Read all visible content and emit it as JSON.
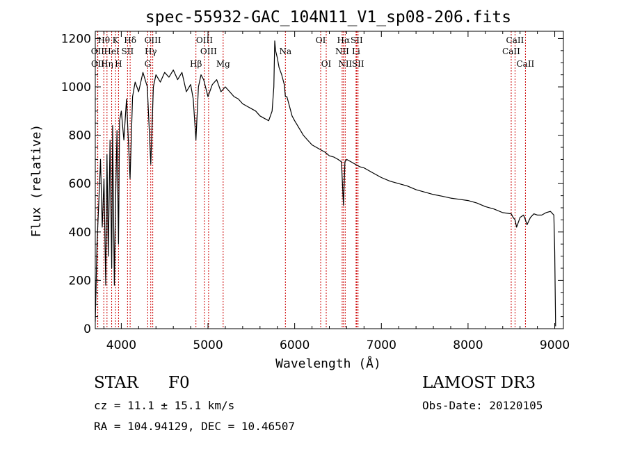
{
  "chart_data": {
    "type": "line",
    "title": "spec-55932-GAC_104N11_V1_sp08-206.fits",
    "xlabel": "Wavelength (Å)",
    "ylabel": "Flux (relative)",
    "xlim": [
      3700,
      9100
    ],
    "ylim": [
      0,
      1230
    ],
    "xticks": [
      4000,
      5000,
      6000,
      7000,
      8000,
      9000
    ],
    "yticks": [
      0,
      200,
      400,
      600,
      800,
      1000,
      1200
    ],
    "series": [
      {
        "name": "flux",
        "x": [
          3700,
          3720,
          3740,
          3760,
          3780,
          3800,
          3820,
          3835,
          3850,
          3870,
          3889,
          3900,
          3920,
          3933,
          3950,
          3968,
          3980,
          4000,
          4030,
          4060,
          4101,
          4130,
          4160,
          4200,
          4250,
          4300,
          4340,
          4370,
          4400,
          4450,
          4500,
          4550,
          4600,
          4650,
          4700,
          4750,
          4800,
          4830,
          4861,
          4890,
          4920,
          4950,
          5000,
          5050,
          5100,
          5150,
          5200,
          5250,
          5300,
          5350,
          5400,
          5450,
          5500,
          5550,
          5600,
          5650,
          5700,
          5740,
          5760,
          5770,
          5780,
          5800,
          5820,
          5850,
          5880,
          5893,
          5910,
          5940,
          5970,
          6000,
          6050,
          6100,
          6150,
          6200,
          6250,
          6300,
          6350,
          6400,
          6450,
          6500,
          6540,
          6563,
          6580,
          6600,
          6650,
          6700,
          6750,
          6800,
          6900,
          7000,
          7100,
          7200,
          7300,
          7400,
          7500,
          7600,
          7700,
          7800,
          7900,
          8000,
          8100,
          8200,
          8300,
          8400,
          8498,
          8520,
          8542,
          8560,
          8600,
          8640,
          8662,
          8680,
          8720,
          8760,
          8800,
          8850,
          8900,
          8950,
          8990,
          9000,
          9010
        ],
        "values": [
          30,
          350,
          520,
          700,
          420,
          620,
          180,
          720,
          300,
          780,
          250,
          840,
          180,
          500,
          820,
          350,
          860,
          900,
          780,
          950,
          620,
          960,
          1020,
          980,
          1060,
          1000,
          680,
          1000,
          1050,
          1020,
          1060,
          1040,
          1070,
          1030,
          1060,
          980,
          1010,
          950,
          780,
          1000,
          1050,
          1030,
          960,
          1010,
          1030,
          980,
          1000,
          980,
          960,
          950,
          930,
          920,
          910,
          900,
          880,
          870,
          860,
          900,
          1000,
          1190,
          1150,
          1120,
          1080,
          1050,
          1010,
          960,
          960,
          920,
          880,
          860,
          830,
          800,
          780,
          760,
          750,
          740,
          730,
          715,
          710,
          700,
          690,
          510,
          690,
          700,
          690,
          680,
          670,
          665,
          645,
          625,
          610,
          600,
          590,
          575,
          565,
          555,
          548,
          540,
          535,
          530,
          520,
          505,
          495,
          480,
          475,
          460,
          450,
          420,
          460,
          470,
          450,
          430,
          460,
          475,
          470,
          470,
          480,
          485,
          470,
          320,
          10
        ]
      }
    ],
    "spectral_lines": [
      {
        "label": "Hθ",
        "x": 3798,
        "row": 0
      },
      {
        "label": "K",
        "x": 3934,
        "row": 0
      },
      {
        "label": "Hδ",
        "x": 4102,
        "row": 0
      },
      {
        "label": "OIII",
        "x": 4363,
        "row": 0
      },
      {
        "label": "OIII",
        "x": 4959,
        "row": 0
      },
      {
        "label": "OI",
        "x": 6300,
        "row": 0
      },
      {
        "label": "Hα",
        "x": 6563,
        "row": 0
      },
      {
        "label": "SII",
        "x": 6716,
        "row": 0
      },
      {
        "label": "CaII",
        "x": 8542,
        "row": 0
      },
      {
        "label": "OII",
        "x": 3727,
        "row": 1
      },
      {
        "label": "HeI",
        "x": 3889,
        "row": 1
      },
      {
        "label": "SII",
        "x": 4072,
        "row": 1
      },
      {
        "label": "Hγ",
        "x": 4340,
        "row": 1
      },
      {
        "label": "OIII",
        "x": 5007,
        "row": 1
      },
      {
        "label": "Na",
        "x": 5893,
        "row": 1
      },
      {
        "label": "NII",
        "x": 6548,
        "row": 1
      },
      {
        "label": "Li",
        "x": 6708,
        "row": 1
      },
      {
        "label": "CaII",
        "x": 8498,
        "row": 1
      },
      {
        "label": "OII",
        "x": 3729,
        "row": 2
      },
      {
        "label": "Hη",
        "x": 3835,
        "row": 2
      },
      {
        "label": "H",
        "x": 3968,
        "row": 2
      },
      {
        "label": "G",
        "x": 4305,
        "row": 2
      },
      {
        "label": "Hβ",
        "x": 4861,
        "row": 2
      },
      {
        "label": "Mg",
        "x": 5175,
        "row": 2
      },
      {
        "label": "OI",
        "x": 6364,
        "row": 2
      },
      {
        "label": "NII",
        "x": 6583,
        "row": 2
      },
      {
        "label": "SII",
        "x": 6731,
        "row": 2
      },
      {
        "label": "CaII",
        "x": 8662,
        "row": 2
      }
    ],
    "line_color": "#000000",
    "marker_color": "#cc0000"
  },
  "info": {
    "class_label": "STAR",
    "subclass": "F0",
    "survey": "LAMOST DR3",
    "cz": "cz = 11.1 ± 15.1 km/s",
    "obs_date": "Obs-Date: 20120105",
    "coords": "RA = 104.94129, DEC =  10.46507"
  }
}
